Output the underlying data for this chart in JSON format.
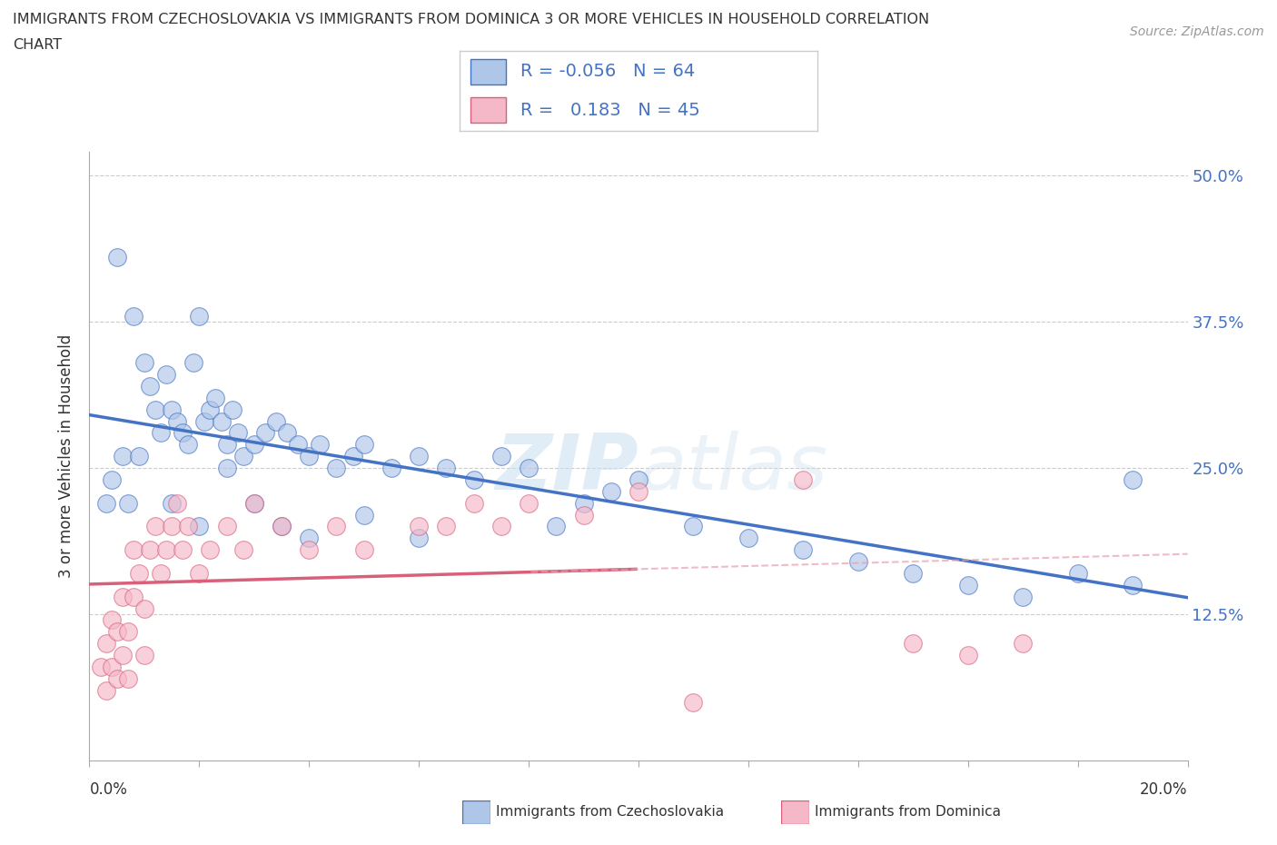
{
  "title_line1": "IMMIGRANTS FROM CZECHOSLOVAKIA VS IMMIGRANTS FROM DOMINICA 3 OR MORE VEHICLES IN HOUSEHOLD CORRELATION",
  "title_line2": "CHART",
  "source": "Source: ZipAtlas.com",
  "ylabel": "3 or more Vehicles in Household",
  "yticks": [
    0.0,
    0.125,
    0.25,
    0.375,
    0.5
  ],
  "ytick_labels": [
    "",
    "12.5%",
    "25.0%",
    "37.5%",
    "50.0%"
  ],
  "xlim": [
    0.0,
    0.2
  ],
  "ylim": [
    0.0,
    0.52
  ],
  "legend_R_czecho": "-0.056",
  "legend_N_czecho": "64",
  "legend_R_dominica": "0.183",
  "legend_N_dominica": "45",
  "color_czecho": "#aec6e8",
  "color_dominica": "#f5b8c8",
  "line_color_czecho": "#4472c4",
  "line_color_dominica": "#d9607a",
  "line_color_dominica_dash": "#e8a0b0",
  "watermark": "ZIPatlas",
  "czecho_x": [
    0.005,
    0.008,
    0.01,
    0.011,
    0.012,
    0.013,
    0.014,
    0.015,
    0.016,
    0.017,
    0.018,
    0.019,
    0.02,
    0.021,
    0.022,
    0.023,
    0.024,
    0.025,
    0.026,
    0.027,
    0.028,
    0.03,
    0.032,
    0.034,
    0.036,
    0.038,
    0.04,
    0.042,
    0.045,
    0.048,
    0.05,
    0.055,
    0.06,
    0.065,
    0.07,
    0.075,
    0.08,
    0.085,
    0.09,
    0.095,
    0.1,
    0.11,
    0.12,
    0.13,
    0.14,
    0.15,
    0.16,
    0.17,
    0.18,
    0.19,
    0.003,
    0.004,
    0.006,
    0.007,
    0.009,
    0.015,
    0.02,
    0.025,
    0.03,
    0.035,
    0.04,
    0.05,
    0.06,
    0.19
  ],
  "czecho_y": [
    0.43,
    0.38,
    0.34,
    0.32,
    0.3,
    0.28,
    0.33,
    0.3,
    0.29,
    0.28,
    0.27,
    0.34,
    0.38,
    0.29,
    0.3,
    0.31,
    0.29,
    0.27,
    0.3,
    0.28,
    0.26,
    0.27,
    0.28,
    0.29,
    0.28,
    0.27,
    0.26,
    0.27,
    0.25,
    0.26,
    0.27,
    0.25,
    0.26,
    0.25,
    0.24,
    0.26,
    0.25,
    0.2,
    0.22,
    0.23,
    0.24,
    0.2,
    0.19,
    0.18,
    0.17,
    0.16,
    0.15,
    0.14,
    0.16,
    0.15,
    0.22,
    0.24,
    0.26,
    0.22,
    0.26,
    0.22,
    0.2,
    0.25,
    0.22,
    0.2,
    0.19,
    0.21,
    0.19,
    0.24
  ],
  "dominica_x": [
    0.002,
    0.003,
    0.003,
    0.004,
    0.004,
    0.005,
    0.005,
    0.006,
    0.006,
    0.007,
    0.007,
    0.008,
    0.008,
    0.009,
    0.01,
    0.01,
    0.011,
    0.012,
    0.013,
    0.014,
    0.015,
    0.016,
    0.017,
    0.018,
    0.02,
    0.022,
    0.025,
    0.028,
    0.03,
    0.035,
    0.04,
    0.045,
    0.05,
    0.06,
    0.065,
    0.07,
    0.075,
    0.08,
    0.09,
    0.1,
    0.11,
    0.13,
    0.15,
    0.16,
    0.17
  ],
  "dominica_y": [
    0.08,
    0.06,
    0.1,
    0.08,
    0.12,
    0.07,
    0.11,
    0.09,
    0.14,
    0.07,
    0.11,
    0.18,
    0.14,
    0.16,
    0.09,
    0.13,
    0.18,
    0.2,
    0.16,
    0.18,
    0.2,
    0.22,
    0.18,
    0.2,
    0.16,
    0.18,
    0.2,
    0.18,
    0.22,
    0.2,
    0.18,
    0.2,
    0.18,
    0.2,
    0.2,
    0.22,
    0.2,
    0.22,
    0.21,
    0.23,
    0.05,
    0.24,
    0.1,
    0.09,
    0.1
  ]
}
